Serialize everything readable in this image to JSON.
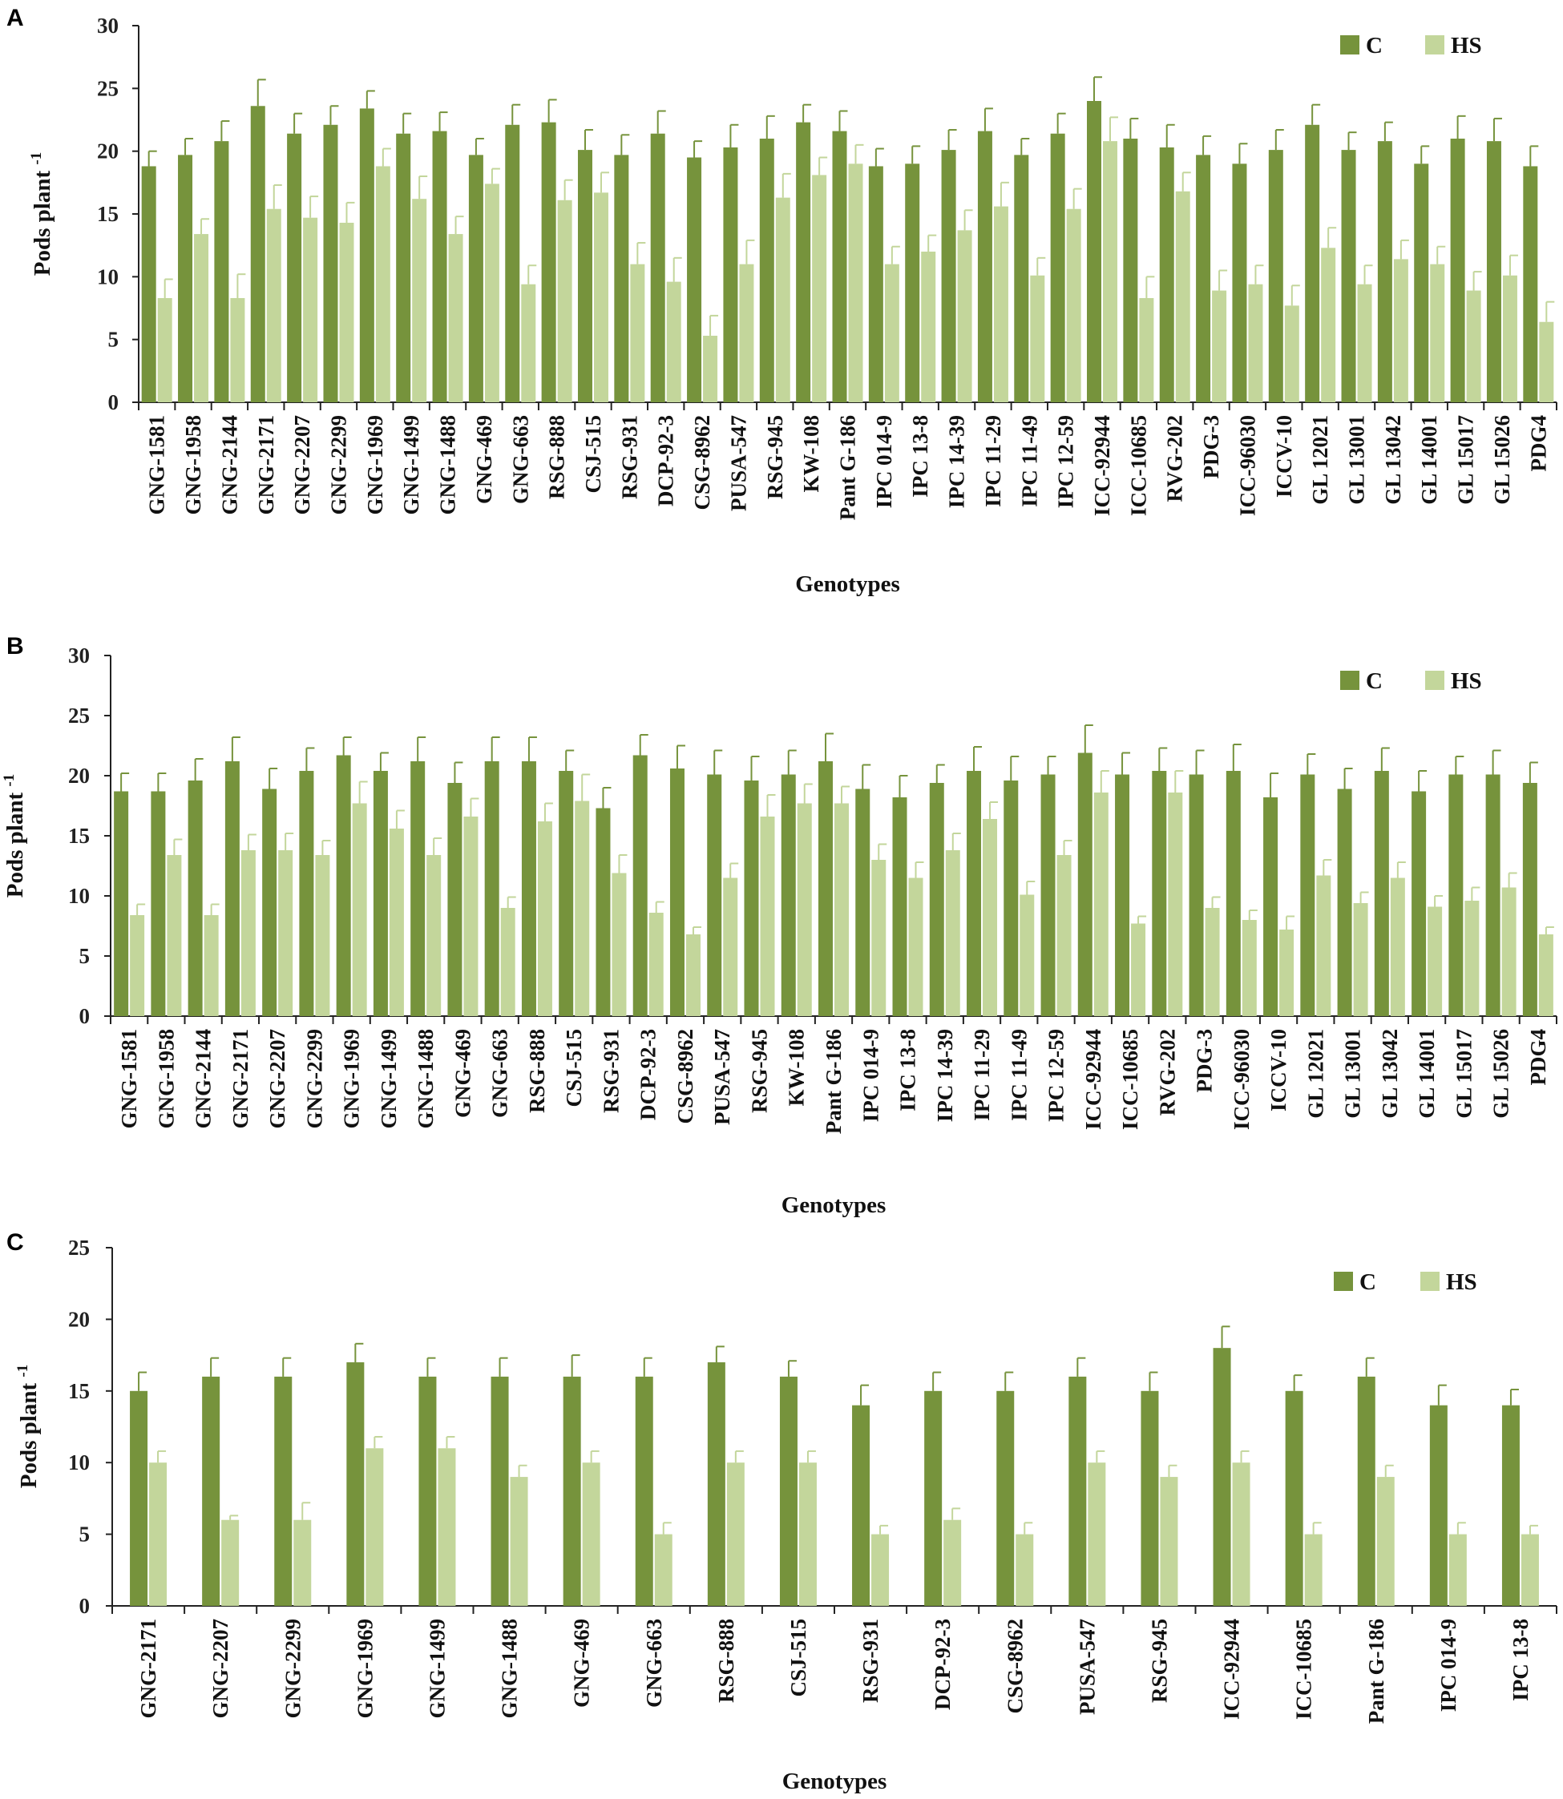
{
  "colors": {
    "C": "#76933c",
    "HS": "#c3d69b",
    "err_C": "#76933c",
    "err_HS": "#c3d69b",
    "axis": "#222222"
  },
  "chart_data": [
    {
      "panel": "A",
      "type": "bar",
      "xlabel": "Genotypes",
      "ylabel": "Pods plant",
      "ylabel_sup": "-1",
      "ylim": [
        0,
        30
      ],
      "yticks": [
        0,
        5,
        10,
        15,
        20,
        25,
        30
      ],
      "legend_position": "top-right",
      "categories": [
        "GNG-1581",
        "GNG-1958",
        "GNG-2144",
        "GNG-2171",
        "GNG-2207",
        "GNG-2299",
        "GNG-1969",
        "GNG-1499",
        "GNG-1488",
        "GNG-469",
        "GNG-663",
        "RSG-888",
        "CSJ-515",
        "RSG-931",
        "DCP-92-3",
        "CSG-8962",
        "PUSA-547",
        "RSG-945",
        "KW-108",
        "Pant G-186",
        "IPC 014-9",
        "IPC 13-8",
        "IPC 14-39",
        "IPC 11-29",
        "IPC 11-49",
        "IPC 12-59",
        "ICC-92944",
        "ICC-10685",
        "RVG-202",
        "PDG-3",
        "ICC-96030",
        "ICCV-10",
        "GL 12021",
        "GL 13001",
        "GL 13042",
        "GL 14001",
        "GL 15017",
        "GL 15026",
        "PDG4"
      ],
      "series": [
        {
          "name": "C",
          "values": [
            18.8,
            19.7,
            20.8,
            23.6,
            21.4,
            22.1,
            23.4,
            21.4,
            21.6,
            19.7,
            22.1,
            22.3,
            20.1,
            19.7,
            21.4,
            19.5,
            20.3,
            21.0,
            22.3,
            21.6,
            18.8,
            19.0,
            20.1,
            21.6,
            19.7,
            21.4,
            24.0,
            21.0,
            20.3,
            19.7,
            19.0,
            20.1,
            22.1,
            20.1,
            20.8,
            19.0,
            21.0,
            20.8,
            18.8
          ],
          "errors": [
            1.2,
            1.3,
            1.6,
            2.1,
            1.6,
            1.5,
            1.4,
            1.6,
            1.5,
            1.3,
            1.6,
            1.8,
            1.6,
            1.6,
            1.8,
            1.3,
            1.8,
            1.8,
            1.4,
            1.6,
            1.4,
            1.4,
            1.6,
            1.8,
            1.3,
            1.6,
            1.9,
            1.6,
            1.8,
            1.5,
            1.6,
            1.6,
            1.6,
            1.4,
            1.5,
            1.4,
            1.8,
            1.8,
            1.6
          ]
        },
        {
          "name": "HS",
          "values": [
            8.3,
            13.4,
            8.3,
            15.4,
            14.7,
            14.3,
            18.8,
            16.2,
            13.4,
            17.4,
            9.4,
            16.1,
            16.7,
            11.0,
            9.6,
            5.3,
            11.0,
            16.3,
            18.1,
            19.0,
            11.0,
            12.0,
            13.7,
            15.6,
            10.1,
            15.4,
            20.8,
            8.3,
            16.8,
            8.9,
            9.4,
            7.7,
            12.3,
            9.4,
            11.4,
            11.0,
            8.9,
            10.1,
            6.4
          ],
          "errors": [
            1.5,
            1.2,
            1.9,
            1.9,
            1.7,
            1.6,
            1.4,
            1.8,
            1.4,
            1.2,
            1.5,
            1.6,
            1.6,
            1.7,
            1.9,
            1.6,
            1.9,
            1.9,
            1.4,
            1.5,
            1.4,
            1.3,
            1.6,
            1.9,
            1.4,
            1.6,
            1.9,
            1.7,
            1.5,
            1.6,
            1.5,
            1.6,
            1.6,
            1.5,
            1.5,
            1.4,
            1.5,
            1.6,
            1.6
          ]
        }
      ]
    },
    {
      "panel": "B",
      "type": "bar",
      "xlabel": "Genotypes",
      "ylabel": "Pods plant",
      "ylabel_sup": "-1",
      "ylim": [
        0,
        30
      ],
      "yticks": [
        0,
        5,
        10,
        15,
        20,
        25,
        30
      ],
      "legend_position": "top-right",
      "categories": [
        "GNG-1581",
        "GNG-1958",
        "GNG-2144",
        "GNG-2171",
        "GNG-2207",
        "GNG-2299",
        "GNG-1969",
        "GNG-1499",
        "GNG-1488",
        "GNG-469",
        "GNG-663",
        "RSG-888",
        "CSJ-515",
        "RSG-931",
        "DCP-92-3",
        "CSG-8962",
        "PUSA-547",
        "RSG-945",
        "KW-108",
        "Pant G-186",
        "IPC 014-9",
        "IPC 13-8",
        "IPC 14-39",
        "IPC 11-29",
        "IPC 11-49",
        "IPC 12-59",
        "ICC-92944",
        "ICC-10685",
        "RVG-202",
        "PDG-3",
        "ICC-96030",
        "ICCV-10",
        "GL 12021",
        "GL 13001",
        "GL 13042",
        "GL 14001",
        "GL 15017",
        "GL 15026",
        "PDG4"
      ],
      "series": [
        {
          "name": "C",
          "values": [
            18.7,
            18.7,
            19.6,
            21.2,
            18.9,
            20.4,
            21.7,
            20.4,
            21.2,
            19.4,
            21.2,
            21.2,
            20.4,
            17.3,
            21.7,
            20.6,
            20.1,
            19.6,
            20.1,
            21.2,
            18.9,
            18.2,
            19.4,
            20.4,
            19.6,
            20.1,
            21.9,
            20.1,
            20.4,
            20.1,
            20.4,
            18.2,
            20.1,
            18.9,
            20.4,
            18.7,
            20.1,
            20.1,
            19.4
          ],
          "errors": [
            1.5,
            1.5,
            1.8,
            2.0,
            1.7,
            1.9,
            1.5,
            1.5,
            2.0,
            1.7,
            2.0,
            2.0,
            1.7,
            1.7,
            1.7,
            1.9,
            2.0,
            2.0,
            2.0,
            2.3,
            2.0,
            1.8,
            1.5,
            2.0,
            2.0,
            1.5,
            2.3,
            1.8,
            1.9,
            2.0,
            2.2,
            2.0,
            1.7,
            1.7,
            1.9,
            1.7,
            1.5,
            2.0,
            1.7
          ]
        },
        {
          "name": "HS",
          "values": [
            8.4,
            13.4,
            8.4,
            13.8,
            13.8,
            13.4,
            17.7,
            15.6,
            13.4,
            16.6,
            9.0,
            16.2,
            17.9,
            11.9,
            8.6,
            6.8,
            11.5,
            16.6,
            17.7,
            17.7,
            13.0,
            11.5,
            13.8,
            16.4,
            10.1,
            13.4,
            18.6,
            7.7,
            18.6,
            9.0,
            8.0,
            7.2,
            11.7,
            9.4,
            11.5,
            9.1,
            9.6,
            10.7,
            6.8
          ],
          "errors": [
            0.9,
            1.3,
            0.9,
            1.3,
            1.4,
            1.2,
            1.8,
            1.5,
            1.4,
            1.5,
            0.9,
            1.5,
            2.2,
            1.5,
            0.9,
            0.6,
            1.2,
            1.8,
            1.6,
            1.4,
            1.3,
            1.3,
            1.4,
            1.4,
            1.1,
            1.2,
            1.8,
            0.6,
            1.8,
            0.9,
            0.8,
            1.1,
            1.3,
            0.9,
            1.3,
            0.9,
            1.1,
            1.2,
            0.6
          ]
        }
      ]
    },
    {
      "panel": "C",
      "type": "bar",
      "xlabel": "Genotypes",
      "ylabel": "Pods plant",
      "ylabel_sup": "-1",
      "ylim": [
        0,
        25
      ],
      "yticks": [
        0,
        5,
        10,
        15,
        20,
        25
      ],
      "legend_position": "top-right",
      "categories": [
        "GNG-2171",
        "GNG-2207",
        "GNG-2299",
        "GNG-1969",
        "GNG-1499",
        "GNG-1488",
        "GNG-469",
        "GNG-663",
        "RSG-888",
        "CSJ-515",
        "RSG-931",
        "DCP-92-3",
        "CSG-8962",
        "PUSA-547",
        "RSG-945",
        "ICC-92944",
        "ICC-10685",
        "Pant G-186",
        "IPC 014-9",
        "IPC 13-8"
      ],
      "series": [
        {
          "name": "C",
          "values": [
            15,
            16,
            16,
            17,
            16,
            16,
            16,
            16,
            17,
            16,
            14,
            15,
            15,
            16,
            15,
            18,
            15,
            16,
            14,
            14
          ],
          "errors": [
            1.3,
            1.3,
            1.3,
            1.3,
            1.3,
            1.3,
            1.5,
            1.3,
            1.1,
            1.1,
            1.4,
            1.3,
            1.3,
            1.3,
            1.3,
            1.5,
            1.1,
            1.3,
            1.4,
            1.1
          ]
        },
        {
          "name": "HS",
          "values": [
            10,
            6,
            6,
            11,
            11,
            9,
            10,
            5,
            10,
            10,
            5,
            6,
            5,
            10,
            9,
            10,
            5,
            9,
            5,
            5
          ],
          "errors": [
            0.8,
            0.3,
            1.2,
            0.8,
            0.8,
            0.8,
            0.8,
            0.8,
            0.8,
            0.8,
            0.6,
            0.8,
            0.8,
            0.8,
            0.8,
            0.8,
            0.8,
            0.8,
            0.8,
            0.6
          ]
        }
      ]
    }
  ]
}
